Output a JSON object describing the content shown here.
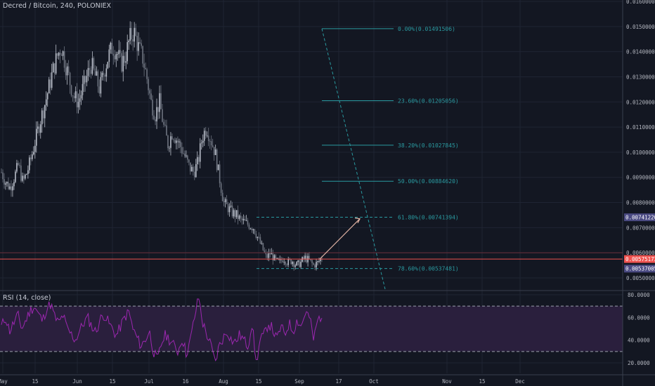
{
  "header": {
    "title": "Decred / Bitcoin, 240, POLONIEX"
  },
  "rsi_panel": {
    "title": "RSI (14, close)"
  },
  "colors": {
    "background": "#131722",
    "grid": "#1f2433",
    "candle_up": "#b9bec9",
    "candle_down": "#6e7480",
    "fib": "#2a9aa0",
    "current_price": "#ef5350",
    "projection_arrow": "#e6b8a8",
    "rsi_line": "#9c27b0",
    "rsi_band": "#2a1f3d",
    "axis_text": "#b2b5be",
    "badge_blue": "#4a4a82"
  },
  "chart_data": [
    {
      "type": "line",
      "name": "price",
      "ylim": [
        0.0044,
        0.0161
      ],
      "x_ticks": [
        "May",
        "15",
        "Jun",
        "15",
        "Jul",
        "16",
        "Aug",
        "15",
        "Sep",
        "17",
        "Oct",
        "Nov",
        "15",
        "Dec"
      ],
      "y_ticks": [
        "0.01600000",
        "0.01500000",
        "0.01400000",
        "0.01300000",
        "0.01200000",
        "0.01100000",
        "0.01000000",
        "0.00900000",
        "0.00800000",
        "0.00700000",
        "0.00600000",
        "0.00500000"
      ],
      "series": [
        {
          "values": [
            0.0092,
            0.0088,
            0.0086,
            0.009,
            0.0095,
            0.0088,
            0.0092,
            0.0098,
            0.0105,
            0.0112,
            0.0118,
            0.0125,
            0.0132,
            0.0138,
            0.0142,
            0.0135,
            0.0128,
            0.0122,
            0.012,
            0.0125,
            0.013,
            0.0135,
            0.013,
            0.0125,
            0.0132,
            0.0138,
            0.0142,
            0.014,
            0.0135,
            0.0138,
            0.0145,
            0.0148,
            0.0142,
            0.0138,
            0.013,
            0.012,
            0.0115,
            0.012,
            0.011,
            0.0103,
            0.0108,
            0.0105,
            0.0102,
            0.0098,
            0.0094,
            0.0092,
            0.0096,
            0.0106,
            0.011,
            0.0105,
            0.01,
            0.009,
            0.008,
            0.0078,
            0.0076,
            0.0075,
            0.0073,
            0.0072,
            0.0071,
            0.007,
            0.0066,
            0.0062,
            0.0058,
            0.006,
            0.0057,
            0.0056,
            0.0058,
            0.0056,
            0.0057,
            0.0055,
            0.0056,
            0.0058,
            0.0057,
            0.0055,
            0.0056,
            0.0058
          ]
        }
      ],
      "fib_levels": [
        {
          "label": "0.00%(0.01491506)",
          "value": 0.01491506
        },
        {
          "label": "23.60%(0.01205056)",
          "value": 0.01205056
        },
        {
          "label": "38.20%(0.01027845)",
          "value": 0.01027845
        },
        {
          "label": "50.00%(0.00884620)",
          "value": 0.0088462
        },
        {
          "label": "61.80%(0.00741394)",
          "value": 0.00741394
        },
        {
          "label": "78.60%(0.00537481)",
          "value": 0.00537481
        }
      ],
      "price_badges": [
        {
          "label": "0.00741220",
          "value": 0.0074122,
          "color": "#4a4a82"
        },
        {
          "label": "0.00575173",
          "value": 0.00575173,
          "color": "#ef5350"
        },
        {
          "label": "0.00537005",
          "value": 0.00537005,
          "color": "#4a4a82"
        }
      ],
      "current_price": 0.00575173,
      "projection": {
        "from_value": 0.00575,
        "to_value": 0.00741
      }
    },
    {
      "type": "line",
      "name": "RSI (14, close)",
      "ylim": [
        12,
        84
      ],
      "y_ticks": [
        "80.0000",
        "60.0000",
        "40.0000",
        "20.0000"
      ],
      "upper_band": 70,
      "lower_band": 30,
      "series": [
        {
          "values": [
            52,
            60,
            48,
            55,
            62,
            50,
            58,
            66,
            70,
            63,
            57,
            68,
            72,
            60,
            55,
            62,
            50,
            45,
            40,
            48,
            55,
            60,
            52,
            47,
            58,
            63,
            56,
            50,
            44,
            52,
            60,
            65,
            50,
            42,
            35,
            40,
            48,
            30,
            22,
            38,
            45,
            40,
            35,
            30,
            42,
            28,
            40,
            60,
            78,
            55,
            45,
            35,
            20,
            35,
            42,
            48,
            40,
            38,
            45,
            40,
            35,
            55,
            20,
            40,
            45,
            55,
            50,
            40,
            52,
            45,
            55,
            48,
            58,
            52,
            65,
            60,
            40,
            58,
            62
          ]
        }
      ]
    }
  ]
}
